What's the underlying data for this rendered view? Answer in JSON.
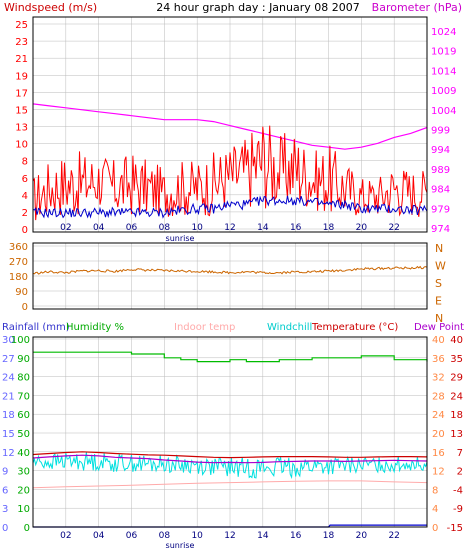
{
  "title": "24 hour graph day : January 08 2007",
  "colors": {
    "wind": "#ff0000",
    "gust": "#0000cc",
    "barometer": "#ff00ff",
    "direction": "#cc6600",
    "humidity": "#00bb00",
    "indoor": "#ffaaaa",
    "windchill": "#00e0e0",
    "temperature": "#cc0000",
    "dewpoint": "#aa00cc",
    "rainfall": "#0000cc",
    "grid": "#bbbbbb",
    "frame": "#000000"
  },
  "chart_data": [
    {
      "type": "line",
      "labels": {
        "left": "Windspeed (m/s)",
        "right": "Barometer (hPa)",
        "sunrise": "sunrise"
      },
      "x_ticks": [
        "02",
        "04",
        "06",
        "08",
        "10",
        "12",
        "14",
        "16",
        "18",
        "20",
        "22"
      ],
      "y_left_ticks": [
        "25",
        "23",
        "21",
        "19",
        "17",
        "15",
        "13",
        "10",
        "8",
        "6",
        "4",
        "2",
        "0"
      ],
      "y_right_ticks": [
        "1024",
        "1019",
        "1014",
        "1009",
        "1004",
        "999",
        "994",
        "989",
        "984",
        "979",
        "974"
      ],
      "xlim": [
        0,
        24
      ],
      "ylim_left": [
        0,
        25
      ],
      "ylim_right": [
        974,
        1024
      ],
      "series": [
        {
          "name": "Barometer (hPa)",
          "axis": "right",
          "x": [
            0,
            1,
            2,
            3,
            4,
            5,
            6,
            7,
            8,
            9,
            10,
            11,
            12,
            13,
            14,
            15,
            16,
            17,
            18,
            19,
            20,
            21,
            22,
            23,
            24
          ],
          "values": [
            1005.5,
            1005,
            1004.5,
            1004,
            1003.5,
            1003,
            1002.5,
            1002,
            1001.5,
            1001.5,
            1001.5,
            1001,
            1000,
            999,
            998,
            997,
            996,
            995,
            994.5,
            994,
            994.5,
            995.5,
            997,
            998,
            999.5
          ]
        },
        {
          "name": "Windspeed (m/s)",
          "axis": "left",
          "x": [
            0,
            1,
            2,
            3,
            4,
            5,
            6,
            7,
            8,
            9,
            10,
            11,
            12,
            13,
            14,
            15,
            16,
            17,
            18,
            19,
            20,
            21,
            22,
            23,
            24
          ],
          "values": [
            3,
            4,
            4,
            5,
            5,
            5,
            6,
            4,
            4,
            4,
            4,
            5,
            6,
            7,
            8,
            7,
            8,
            6,
            6,
            4,
            3,
            3,
            4,
            4,
            4
          ],
          "min": [
            0,
            1,
            1,
            1,
            2,
            1,
            1,
            1,
            1,
            1,
            1,
            1,
            2,
            2,
            2,
            2,
            2,
            2,
            1,
            1,
            1,
            1,
            1,
            1,
            1
          ],
          "max": [
            6,
            8,
            9,
            9,
            9,
            8,
            9,
            8,
            7,
            8,
            8,
            9,
            10,
            11,
            14,
            11,
            12,
            9,
            10,
            8,
            6,
            6,
            8,
            7,
            7
          ]
        },
        {
          "name": "Wind average (m/s)",
          "axis": "left",
          "x": [
            0,
            1,
            2,
            3,
            4,
            5,
            6,
            7,
            8,
            9,
            10,
            11,
            12,
            13,
            14,
            15,
            16,
            17,
            18,
            19,
            20,
            21,
            22,
            23,
            24
          ],
          "values": [
            1.5,
            1.5,
            1.5,
            1.5,
            1.5,
            1.5,
            1.5,
            1.5,
            1.5,
            1.8,
            2,
            2,
            2.5,
            2.5,
            3,
            3,
            3,
            2.8,
            2.5,
            2.5,
            2,
            2,
            2,
            1.8,
            1.8
          ]
        }
      ]
    },
    {
      "type": "line",
      "labels": {
        "right": [
          "N",
          "W",
          "S",
          "E",
          "N"
        ]
      },
      "y_left_ticks": [
        "360",
        "270",
        "180",
        "90",
        "0"
      ],
      "ylim": [
        0,
        360
      ],
      "series": [
        {
          "name": "Wind direction",
          "x": [
            0,
            1,
            2,
            3,
            4,
            5,
            6,
            7,
            8,
            9,
            10,
            11,
            12,
            13,
            14,
            15,
            16,
            17,
            18,
            19,
            20,
            21,
            22,
            23,
            24
          ],
          "values": [
            195,
            205,
            200,
            210,
            212,
            208,
            220,
            215,
            212,
            210,
            208,
            205,
            200,
            205,
            200,
            200,
            205,
            205,
            210,
            215,
            222,
            225,
            228,
            228,
            232
          ]
        }
      ]
    },
    {
      "type": "line",
      "labels": {
        "rainfall": "Rainfall (mm)",
        "humidity": "Humidity %",
        "indoor": "Indoor temp",
        "windchill": "Windchill",
        "temperature": "Temperature (°C)",
        "dewpoint": "Dew Point",
        "sunrise": "sunrise"
      },
      "x_ticks": [
        "02",
        "04",
        "06",
        "08",
        "10",
        "12",
        "14",
        "16",
        "18",
        "20",
        "22"
      ],
      "y_rain_ticks": [
        "30",
        "27",
        "24",
        "21",
        "18",
        "15",
        "12",
        "9",
        "6",
        "3",
        "0"
      ],
      "y_humidity_ticks": [
        "100",
        "90",
        "80",
        "70",
        "60",
        "50",
        "40",
        "30",
        "20",
        "10",
        "0"
      ],
      "y_right1_ticks": [
        "40",
        "36",
        "32",
        "28",
        "24",
        "20",
        "16",
        "12",
        "8",
        "4",
        "0"
      ],
      "y_right2_ticks": [
        "40",
        "35",
        "29",
        "24",
        "18",
        "13",
        "7",
        "2",
        "-4",
        "-9",
        "-15"
      ],
      "ylim_humidity": [
        0,
        100
      ],
      "ylim_temperature": [
        -15,
        40
      ],
      "ylim_rain": [
        0,
        30
      ],
      "series": [
        {
          "name": "Humidity %",
          "axis": "humidity",
          "x": [
            0,
            1,
            2,
            3,
            4,
            5,
            6,
            7,
            8,
            9,
            10,
            11,
            12,
            13,
            14,
            15,
            16,
            17,
            18,
            19,
            20,
            21,
            22,
            23,
            24
          ],
          "values": [
            93,
            93,
            93,
            93,
            93,
            93,
            92,
            92,
            90,
            89,
            88,
            88,
            89,
            88,
            88,
            89,
            89,
            90,
            90,
            90,
            91,
            91,
            89,
            89,
            88
          ]
        },
        {
          "name": "Temperature (°C)",
          "axis": "temperature",
          "x": [
            0,
            1,
            2,
            3,
            4,
            5,
            6,
            7,
            8,
            9,
            10,
            11,
            12,
            13,
            14,
            15,
            16,
            17,
            18,
            19,
            20,
            21,
            22,
            23,
            24
          ],
          "values": [
            6.2,
            6.5,
            6.8,
            7.0,
            6.8,
            6.5,
            6.3,
            6.1,
            6.0,
            5.8,
            5.6,
            5.4,
            5.3,
            5.4,
            5.5,
            5.6,
            5.6,
            5.6,
            5.5,
            5.4,
            5.4,
            5.5,
            5.6,
            5.6,
            5.5
          ]
        },
        {
          "name": "Dew Point",
          "axis": "temperature",
          "x": [
            0,
            1,
            2,
            3,
            4,
            5,
            6,
            7,
            8,
            9,
            10,
            11,
            12,
            13,
            14,
            15,
            16,
            17,
            18,
            19,
            20,
            21,
            22,
            23,
            24
          ],
          "values": [
            5.2,
            5.5,
            5.8,
            6.0,
            5.8,
            5.4,
            5.2,
            5.0,
            4.6,
            4.3,
            4.0,
            3.8,
            3.9,
            3.8,
            3.9,
            4.1,
            4.2,
            4.3,
            4.3,
            4.2,
            4.3,
            4.4,
            4.5,
            4.4,
            4.3
          ]
        },
        {
          "name": "Windchill",
          "axis": "temperature",
          "x": [
            0,
            1,
            2,
            3,
            4,
            5,
            6,
            7,
            8,
            9,
            10,
            11,
            12,
            13,
            14,
            15,
            16,
            17,
            18,
            19,
            20,
            21,
            22,
            23,
            24
          ],
          "values": [
            4.5,
            4.0,
            4.5,
            4.2,
            3.8,
            3.5,
            3.6,
            3.0,
            3.2,
            3.0,
            2.8,
            2.5,
            2.2,
            2.0,
            1.5,
            1.8,
            2.0,
            2.5,
            2.2,
            2.5,
            3.0,
            3.2,
            3.0,
            3.5,
            3.5
          ],
          "min": [
            2.0,
            1.5,
            2.0,
            1.5,
            1.5,
            1.0,
            1.2,
            0.5,
            1.0,
            0.5,
            0.5,
            0.0,
            -0.5,
            -0.5,
            -1.0,
            -0.8,
            -0.5,
            0.0,
            0.0,
            0.5,
            1.0,
            1.0,
            1.0,
            1.5,
            1.5
          ],
          "max": [
            6.2,
            6.5,
            6.8,
            7.0,
            6.8,
            6.5,
            6.3,
            6.1,
            6.0,
            5.8,
            5.6,
            5.4,
            5.3,
            5.4,
            5.5,
            5.6,
            5.6,
            5.6,
            5.5,
            5.4,
            5.4,
            5.5,
            5.6,
            5.6,
            5.5
          ]
        },
        {
          "name": "Indoor temp",
          "axis": "temperature",
          "x": [
            0,
            2,
            4,
            6,
            8,
            10,
            12,
            14,
            16,
            18,
            20,
            22,
            24
          ],
          "values": [
            -3.5,
            -3.2,
            -3.0,
            -2.8,
            -2.5,
            -2.2,
            -2.0,
            -1.8,
            -1.6,
            -1.5,
            -1.5,
            -1.8,
            -2.0
          ]
        },
        {
          "name": "Rainfall (mm)",
          "axis": "rain",
          "x": [
            0,
            18,
            18.1,
            24
          ],
          "values": [
            0,
            0,
            0.3,
            0.3
          ]
        }
      ]
    }
  ]
}
